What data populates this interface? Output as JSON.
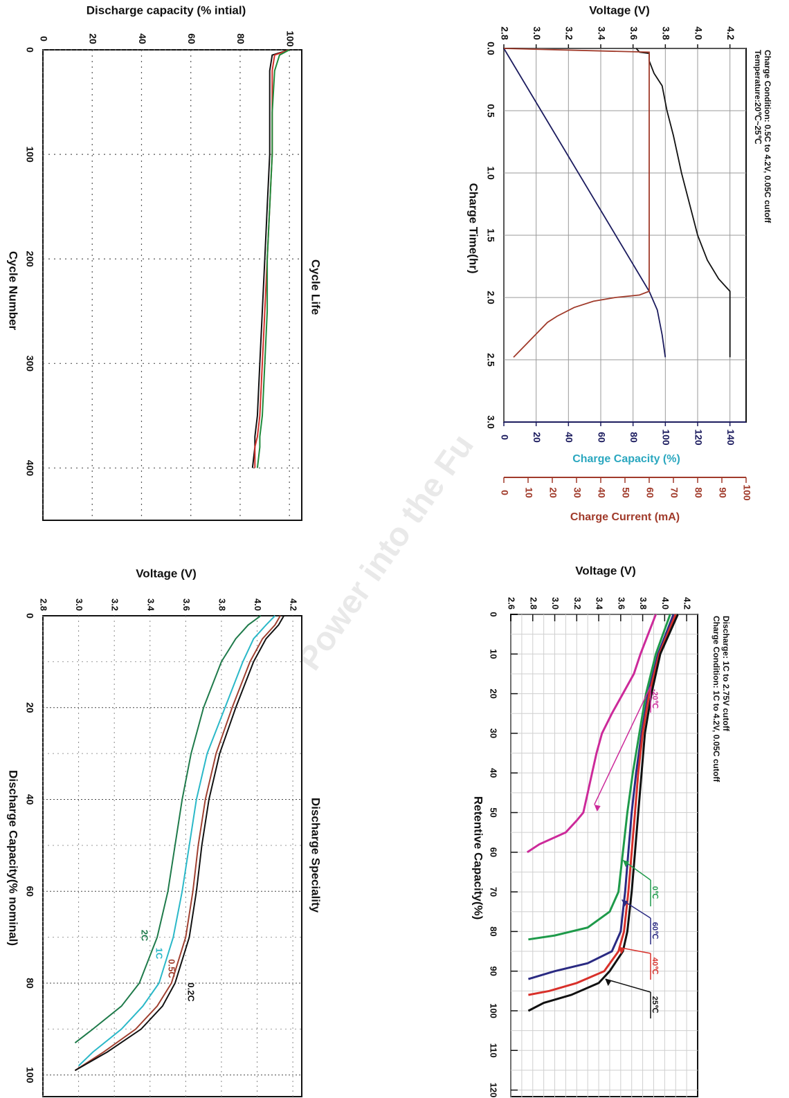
{
  "watermark": {
    "text": "Power into the Fu",
    "color": "#e9e9e9"
  },
  "chart_data": [
    {
      "type": "line",
      "id": "charge",
      "xlabel": "Charge Time(hr)",
      "xlim": [
        0,
        3.0
      ],
      "xticks": [
        "0.0",
        "0.5",
        "1.0",
        "1.5",
        "2.0",
        "2.5",
        "3.0"
      ],
      "notes": [
        "Temperature:20℃~25℃",
        "Charge Condition: 0.5C to 4.2V, 0.05C cutoff"
      ],
      "axes": [
        {
          "label": "Voltage (V)",
          "ylim": [
            2.8,
            4.3
          ],
          "ticks": [
            "2.8",
            "3.0",
            "3.2",
            "3.4",
            "3.6",
            "3.8",
            "4.0",
            "4.2"
          ],
          "color": "#111111"
        },
        {
          "label": "Charge Capacity (%)",
          "ylim": [
            0,
            150
          ],
          "ticks": [
            "0",
            "20",
            "40",
            "60",
            "80",
            "100",
            "120",
            "140"
          ],
          "color": "#1b1b5e",
          "label_color": "#2aa7bf"
        },
        {
          "label": "Charge Current (mA)",
          "ylim": [
            0,
            100
          ],
          "ticks": [
            "0",
            "10",
            "20",
            "30",
            "40",
            "50",
            "60",
            "70",
            "80",
            "90",
            "100"
          ],
          "color": "#a03a2a"
        }
      ],
      "series": [
        {
          "axis": 0,
          "color": "#111111",
          "x": [
            0.0,
            0.03,
            0.04,
            0.1,
            0.2,
            0.3,
            0.5,
            0.7,
            1.0,
            1.3,
            1.5,
            1.7,
            1.85,
            1.95,
            2.0,
            2.48
          ],
          "y": [
            3.62,
            3.64,
            3.7,
            3.7,
            3.73,
            3.78,
            3.81,
            3.85,
            3.9,
            3.96,
            4.0,
            4.06,
            4.13,
            4.2,
            4.2,
            4.2
          ]
        },
        {
          "axis": 1,
          "color": "#1b1b5e",
          "x": [
            0.0,
            1.95,
            2.1,
            2.3,
            2.48
          ],
          "y": [
            0,
            90,
            95,
            98,
            100
          ]
        },
        {
          "axis": 2,
          "color": "#a03a2a",
          "x": [
            0.0,
            0.03,
            1.95,
            1.98,
            2.0,
            2.03,
            2.08,
            2.15,
            2.2,
            2.3,
            2.4,
            2.48
          ],
          "y": [
            0,
            60,
            60,
            56,
            46,
            37,
            29,
            22,
            18,
            13,
            8,
            4
          ]
        }
      ]
    },
    {
      "type": "line",
      "id": "cycle",
      "title": "Cycle Life",
      "xlabel": "Cycle Number",
      "ylabel": "Discharge capacity (% intial)",
      "xlim": [
        0,
        450
      ],
      "ylim": [
        0,
        105
      ],
      "xticks": [
        "0",
        "100",
        "200",
        "300",
        "400"
      ],
      "yticks": [
        "0",
        "20",
        "40",
        "60",
        "80",
        "100"
      ],
      "series": [
        {
          "color": "#111111",
          "x": [
            0,
            5,
            20,
            60,
            100,
            150,
            200,
            250,
            300,
            350,
            370,
            380,
            400
          ],
          "y": [
            100,
            93,
            92,
            92,
            92,
            91,
            90,
            89,
            88,
            87,
            86,
            86,
            85
          ]
        },
        {
          "color": "#d0302a",
          "x": [
            0,
            5,
            20,
            60,
            100,
            150,
            200,
            250,
            300,
            350,
            370,
            380,
            400
          ],
          "y": [
            100,
            94,
            93,
            93,
            93,
            92,
            91,
            90,
            89,
            88,
            87,
            86,
            86
          ]
        },
        {
          "color": "#1e8a3a",
          "x": [
            0,
            5,
            20,
            60,
            100,
            150,
            200,
            250,
            300,
            350,
            370,
            380,
            400
          ],
          "y": [
            100,
            96,
            94,
            93,
            93,
            92,
            91,
            91,
            90,
            89,
            88,
            88,
            87
          ]
        }
      ]
    },
    {
      "type": "line",
      "id": "temp",
      "xlabel": "Retentive Capacity(%)",
      "ylabel": "Voltage (V)",
      "xlim": [
        0,
        122
      ],
      "ylim": [
        2.6,
        4.3
      ],
      "xticks": [
        "0",
        "10",
        "20",
        "30",
        "40",
        "50",
        "60",
        "70",
        "80",
        "90",
        "100",
        "110",
        "120"
      ],
      "yticks": [
        "2.6",
        "2.8",
        "3.0",
        "3.2",
        "3.4",
        "3.6",
        "3.8",
        "4.0",
        "4.2"
      ],
      "notes": [
        "Charge Condition: 1C to 4.2V, 0.05C cutoff",
        "Discharge: 1C to 2.75V cutoff"
      ],
      "series": [
        {
          "name": "-20℃",
          "color": "#cc2a9a",
          "x": [
            0,
            5,
            10,
            15,
            20,
            25,
            30,
            35,
            40,
            45,
            50,
            52,
            55,
            58,
            60
          ],
          "y": [
            3.92,
            3.85,
            3.78,
            3.72,
            3.62,
            3.52,
            3.43,
            3.38,
            3.34,
            3.3,
            3.26,
            3.2,
            3.1,
            2.86,
            2.75
          ]
        },
        {
          "name": "0℃",
          "color": "#1e9a4a",
          "x": [
            0,
            10,
            20,
            30,
            40,
            50,
            60,
            70,
            75,
            79,
            81,
            82
          ],
          "y": [
            4.05,
            3.92,
            3.83,
            3.77,
            3.71,
            3.66,
            3.62,
            3.58,
            3.5,
            3.3,
            3.0,
            2.76
          ]
        },
        {
          "name": "60℃",
          "color": "#2a2a82",
          "x": [
            0,
            10,
            20,
            30,
            40,
            50,
            60,
            70,
            80,
            85,
            88,
            90,
            92
          ],
          "y": [
            4.08,
            3.94,
            3.85,
            3.79,
            3.74,
            3.7,
            3.67,
            3.64,
            3.6,
            3.52,
            3.3,
            3.0,
            2.76
          ]
        },
        {
          "name": "40℃",
          "color": "#d8302a",
          "x": [
            0,
            10,
            20,
            30,
            40,
            50,
            60,
            70,
            80,
            85,
            90,
            93,
            95,
            96
          ],
          "y": [
            4.1,
            3.95,
            3.86,
            3.8,
            3.76,
            3.73,
            3.7,
            3.67,
            3.63,
            3.58,
            3.45,
            3.2,
            2.95,
            2.76
          ]
        },
        {
          "name": "25℃",
          "color": "#111111",
          "x": [
            0,
            10,
            20,
            30,
            40,
            50,
            60,
            70,
            80,
            85,
            90,
            93,
            96,
            98,
            100
          ],
          "y": [
            4.12,
            3.96,
            3.88,
            3.82,
            3.79,
            3.76,
            3.73,
            3.7,
            3.66,
            3.62,
            3.5,
            3.4,
            3.15,
            2.9,
            2.76
          ]
        }
      ]
    },
    {
      "type": "line",
      "id": "rate",
      "title": "Discharge Speciality",
      "xlabel": "Discharge Capacity(% nominal)",
      "ylabel": "Voltage (V)",
      "xlim": [
        0,
        105
      ],
      "ylim": [
        2.8,
        4.25
      ],
      "xticks": [
        "0",
        "20",
        "40",
        "60",
        "80",
        "100"
      ],
      "yticks": [
        "2.8",
        "3.0",
        "3.2",
        "3.4",
        "3.6",
        "3.8",
        "4.0",
        "4.2"
      ],
      "series": [
        {
          "name": "2C",
          "color": "#1e7a4a",
          "x": [
            0,
            2,
            5,
            10,
            20,
            30,
            40,
            50,
            60,
            70,
            80,
            85,
            90,
            93
          ],
          "y": [
            4.02,
            3.95,
            3.88,
            3.8,
            3.7,
            3.63,
            3.58,
            3.54,
            3.5,
            3.44,
            3.34,
            3.24,
            3.08,
            2.98
          ]
        },
        {
          "name": "1C",
          "color": "#2ab8c8",
          "x": [
            0,
            2,
            5,
            10,
            20,
            30,
            40,
            50,
            60,
            70,
            80,
            85,
            90,
            95,
            98
          ],
          "y": [
            4.1,
            4.05,
            3.98,
            3.92,
            3.82,
            3.72,
            3.66,
            3.62,
            3.58,
            3.53,
            3.45,
            3.36,
            3.24,
            3.08,
            3.0
          ]
        },
        {
          "name": "0.5C",
          "color": "#a04030",
          "x": [
            0,
            2,
            5,
            10,
            20,
            30,
            40,
            50,
            60,
            70,
            80,
            85,
            90,
            95,
            99
          ],
          "y": [
            4.13,
            4.1,
            4.03,
            3.96,
            3.86,
            3.77,
            3.71,
            3.67,
            3.64,
            3.6,
            3.52,
            3.44,
            3.32,
            3.14,
            2.98
          ]
        },
        {
          "name": "0.2C",
          "color": "#111111",
          "x": [
            0,
            2,
            5,
            10,
            20,
            30,
            40,
            50,
            60,
            70,
            80,
            85,
            90,
            95,
            99
          ],
          "y": [
            4.15,
            4.12,
            4.05,
            3.98,
            3.88,
            3.79,
            3.73,
            3.69,
            3.66,
            3.62,
            3.54,
            3.47,
            3.35,
            3.16,
            2.98
          ]
        }
      ]
    }
  ]
}
